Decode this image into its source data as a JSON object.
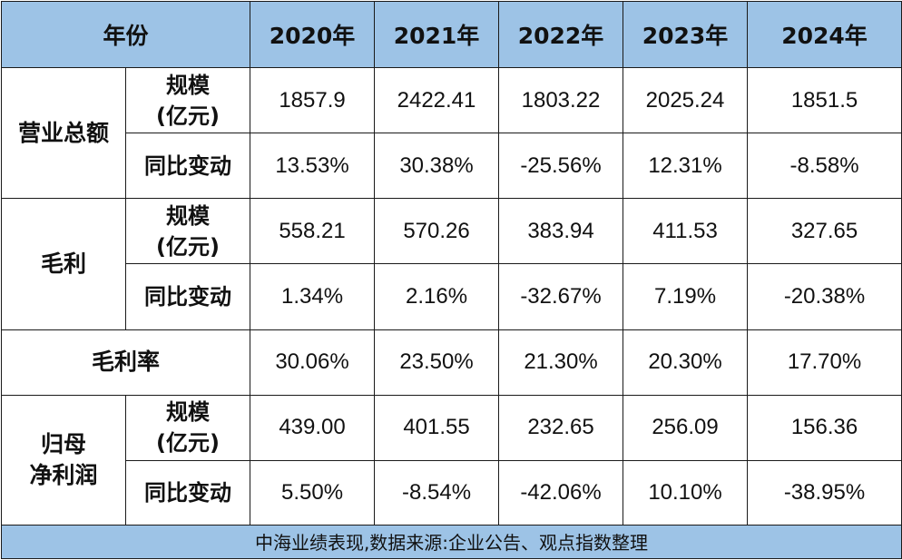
{
  "header": {
    "corner": "年份",
    "years": [
      "2020年",
      "2021年",
      "2022年",
      "2023年",
      "2024年"
    ]
  },
  "labels": {
    "revenue": "营业总额",
    "gross_profit": "毛利",
    "gross_margin": "毛利率",
    "net_profit_line1": "归母",
    "net_profit_line2": "净利润",
    "scale_line1": "规模",
    "scale_line2": "(亿元)",
    "yoy": "同比变动"
  },
  "rows": {
    "revenue_scale": [
      "1857.9",
      "2422.41",
      "1803.22",
      "2025.24",
      "1851.5"
    ],
    "revenue_yoy": [
      "13.53%",
      "30.38%",
      "-25.56%",
      "12.31%",
      "-8.58%"
    ],
    "gross_profit_scale": [
      "558.21",
      "570.26",
      "383.94",
      "411.53",
      "327.65"
    ],
    "gross_profit_yoy": [
      "1.34%",
      "2.16%",
      "-32.67%",
      "7.19%",
      "-20.38%"
    ],
    "gross_margin": [
      "30.06%",
      "23.50%",
      "21.30%",
      "20.30%",
      "17.70%"
    ],
    "net_profit_scale": [
      "439.00",
      "401.55",
      "232.65",
      "256.09",
      "156.36"
    ],
    "net_profit_yoy": [
      "5.50%",
      "-8.54%",
      "-42.06%",
      "10.10%",
      "-38.95%"
    ]
  },
  "footer": "中海业绩表现,数据来源:企业公告、观点指数整理"
}
